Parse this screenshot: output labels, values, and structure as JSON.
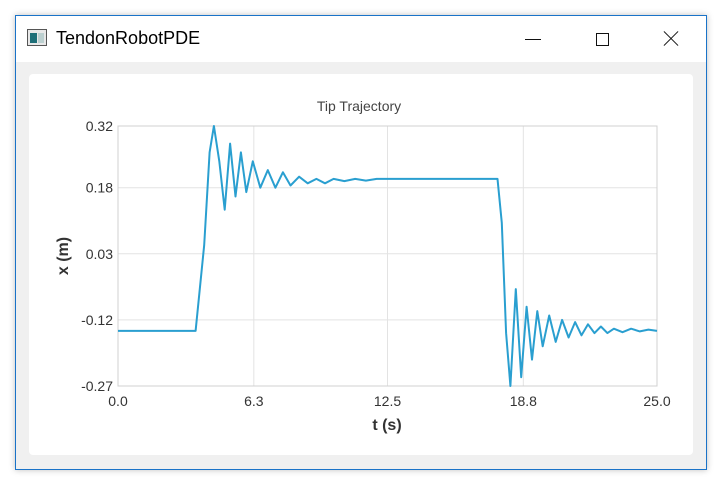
{
  "window": {
    "title": "TendonRobotPDE",
    "icon": "app-window-icon",
    "controls": [
      "minimize-icon",
      "maximize-icon",
      "close-icon"
    ]
  },
  "chart_data": {
    "type": "line",
    "title": "Tip Trajectory",
    "xlabel": "t (s)",
    "ylabel": "x (m)",
    "xlim": [
      0.0,
      25.0
    ],
    "ylim": [
      -0.27,
      0.32
    ],
    "xticks": [
      "0.0",
      "6.3",
      "12.5",
      "18.8",
      "25.0"
    ],
    "yticks": [
      "0.32",
      "0.18",
      "0.03",
      "-0.12",
      "-0.27"
    ],
    "grid": true,
    "legend": "none",
    "series": [
      {
        "color": "#2a9fd0",
        "x": [
          0.0,
          3.6,
          4.0,
          4.25,
          4.45,
          4.7,
          4.95,
          5.2,
          5.45,
          5.7,
          5.95,
          6.25,
          6.6,
          6.95,
          7.3,
          7.65,
          8.0,
          8.4,
          8.8,
          9.2,
          9.6,
          10.0,
          10.5,
          11.0,
          11.5,
          12.0,
          13.0,
          14.0,
          15.0,
          16.0,
          17.0,
          17.6,
          17.8,
          18.0,
          18.2,
          18.45,
          18.7,
          18.95,
          19.2,
          19.45,
          19.7,
          20.0,
          20.3,
          20.6,
          20.9,
          21.2,
          21.5,
          21.8,
          22.1,
          22.4,
          22.7,
          23.0,
          23.4,
          23.8,
          24.2,
          24.6,
          25.0
        ],
        "y": [
          -0.145,
          -0.145,
          0.05,
          0.26,
          0.32,
          0.24,
          0.13,
          0.28,
          0.16,
          0.26,
          0.17,
          0.24,
          0.18,
          0.22,
          0.18,
          0.215,
          0.185,
          0.205,
          0.19,
          0.2,
          0.19,
          0.2,
          0.195,
          0.2,
          0.196,
          0.2,
          0.2,
          0.2,
          0.2,
          0.2,
          0.2,
          0.2,
          0.1,
          -0.15,
          -0.27,
          -0.05,
          -0.25,
          -0.09,
          -0.21,
          -0.1,
          -0.18,
          -0.11,
          -0.17,
          -0.12,
          -0.16,
          -0.125,
          -0.155,
          -0.13,
          -0.15,
          -0.135,
          -0.15,
          -0.14,
          -0.148,
          -0.14,
          -0.146,
          -0.142,
          -0.145
        ]
      }
    ]
  }
}
